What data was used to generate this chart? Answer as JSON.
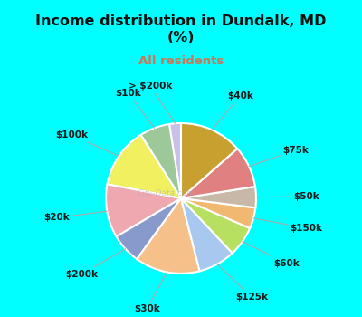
{
  "title": "Income distribution in Dundalk, MD\n(%)",
  "subtitle": "All residents",
  "fig_bg_color": "#00FFFF",
  "chart_bg_color": "#e8f5ee",
  "title_color": "#111111",
  "subtitle_color": "#cc7755",
  "labels": [
    "> $200k",
    "$10k",
    "$100k",
    "$20k",
    "$200k",
    "$30k",
    "$125k",
    "$60k",
    "$150k",
    "$50k",
    "$75k",
    "$40k"
  ],
  "values": [
    2.5,
    6.5,
    13.0,
    11.5,
    6.5,
    14.0,
    8.0,
    6.5,
    4.5,
    4.5,
    9.0,
    13.5
  ],
  "colors": [
    "#c8c0e8",
    "#9dc89a",
    "#f0f060",
    "#f0a8b0",
    "#8899cc",
    "#f5c08a",
    "#a8c8f0",
    "#b8e060",
    "#f0b870",
    "#c8b8a8",
    "#e08080",
    "#c8a030"
  ],
  "startangle": 90,
  "wedge_edge_color": "white",
  "wedge_edge_width": 1.5,
  "label_fontsize": 7.5,
  "label_fontweight": "bold",
  "label_color": "#1a1a1a",
  "line_color": "#aaaaaa",
  "watermark_text": "City-Data.com",
  "watermark_color": "#aaaacc",
  "watermark_alpha": 0.55
}
